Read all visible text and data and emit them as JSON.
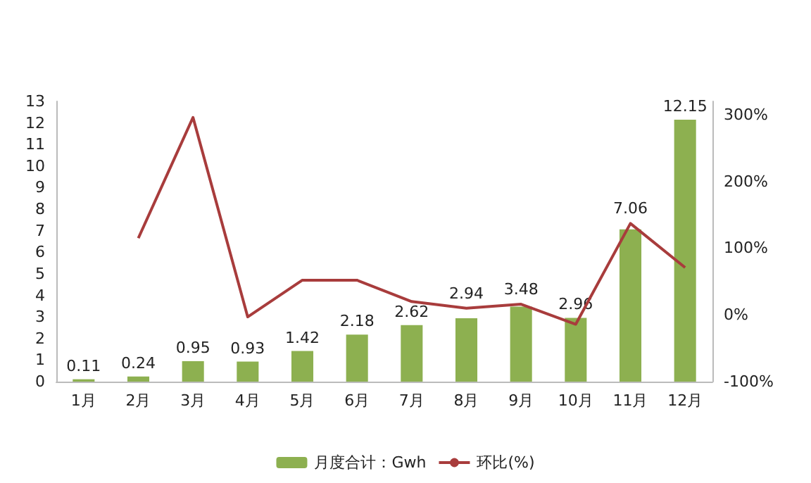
{
  "chart_data": {
    "type": "bar",
    "categories": [
      "1月",
      "2月",
      "3月",
      "4月",
      "5月",
      "6月",
      "7月",
      "8月",
      "9月",
      "10月",
      "11月",
      "12月"
    ],
    "series": [
      {
        "name": "月度合计：Gwh",
        "color": "#8db050",
        "values": [
          0.11,
          0.24,
          0.95,
          0.93,
          1.42,
          2.18,
          2.62,
          2.94,
          3.48,
          2.96,
          7.06,
          12.15
        ],
        "value_labels": [
          "0.11",
          "0.24",
          "0.95",
          "0.93",
          "1.42",
          "2.18",
          "2.62",
          "2.94",
          "3.48",
          "2.96",
          "7.06",
          "12.15"
        ]
      },
      {
        "name": "环比(%)",
        "type": "line",
        "axis": "y2",
        "color": "#a83c3c",
        "values": [
          null,
          115,
          296,
          -3,
          52,
          52,
          20,
          10,
          16,
          -14,
          137,
          71
        ]
      }
    ],
    "ylim": [
      0,
      13
    ],
    "yticks": [
      0,
      1,
      2,
      3,
      4,
      5,
      6,
      7,
      8,
      9,
      10,
      11,
      12,
      13
    ],
    "y2lim": [
      -100,
      320
    ],
    "y2ticks": [
      {
        "value": -100,
        "label": "-100%"
      },
      {
        "value": 0,
        "label": "0%"
      },
      {
        "value": 100,
        "label": "100%"
      },
      {
        "value": 200,
        "label": "200%"
      },
      {
        "value": 300,
        "label": "300%"
      }
    ],
    "legend": "bottom",
    "grid": false,
    "marker": "none"
  }
}
